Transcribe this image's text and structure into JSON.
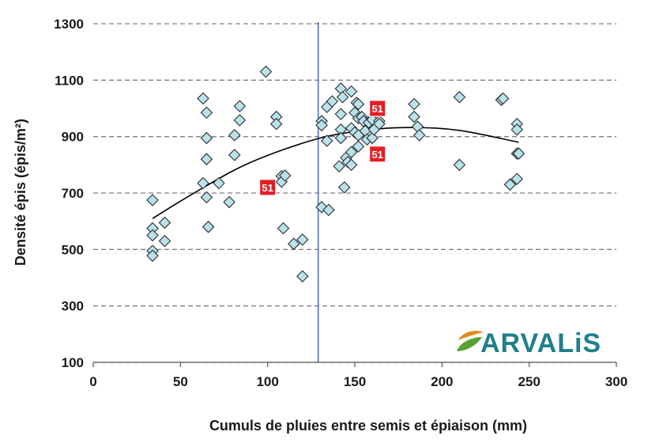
{
  "chart_data": {
    "type": "scatter",
    "xlabel": "Cumuls de pluies entre semis et épiaison (mm)",
    "ylabel": "Densité épis (épis/m²)",
    "xlim": [
      0,
      300
    ],
    "ylim": [
      100,
      1300
    ],
    "xticks": [
      0,
      50,
      100,
      150,
      200,
      250,
      300
    ],
    "yticks": [
      100,
      300,
      500,
      700,
      900,
      1100,
      1300
    ],
    "grid": "horizontal dashed",
    "vertical_reference_line_x": 129,
    "points": [
      [
        34,
        675
      ],
      [
        34,
        575
      ],
      [
        34,
        550
      ],
      [
        34,
        495
      ],
      [
        34,
        478
      ],
      [
        41,
        595
      ],
      [
        41,
        530
      ],
      [
        63,
        1035
      ],
      [
        63,
        735
      ],
      [
        65,
        985
      ],
      [
        65,
        895
      ],
      [
        65,
        820
      ],
      [
        65,
        685
      ],
      [
        66,
        580
      ],
      [
        72,
        735
      ],
      [
        78,
        668
      ],
      [
        81,
        905
      ],
      [
        81,
        835
      ],
      [
        84,
        1008
      ],
      [
        84,
        958
      ],
      [
        99,
        1130
      ],
      [
        105,
        970
      ],
      [
        105,
        945
      ],
      [
        108,
        760
      ],
      [
        108,
        740
      ],
      [
        109,
        575
      ],
      [
        110,
        762
      ],
      [
        115,
        520
      ],
      [
        120,
        535
      ],
      [
        120,
        405
      ],
      [
        131,
        955
      ],
      [
        131,
        940
      ],
      [
        131,
        650
      ],
      [
        134,
        1005
      ],
      [
        134,
        885
      ],
      [
        135,
        640
      ],
      [
        137,
        1025
      ],
      [
        141,
        795
      ],
      [
        142,
        1070
      ],
      [
        142,
        980
      ],
      [
        142,
        925
      ],
      [
        142,
        895
      ],
      [
        143,
        1040
      ],
      [
        144,
        720
      ],
      [
        145,
        825
      ],
      [
        146,
        810
      ],
      [
        148,
        1060
      ],
      [
        148,
        930
      ],
      [
        148,
        845
      ],
      [
        148,
        800
      ],
      [
        150,
        985
      ],
      [
        150,
        915
      ],
      [
        151,
        1020
      ],
      [
        152,
        1015
      ],
      [
        152,
        965
      ],
      [
        152,
        905
      ],
      [
        152,
        865
      ],
      [
        154,
        970
      ],
      [
        155,
        955
      ],
      [
        156,
        920
      ],
      [
        157,
        890
      ],
      [
        158,
        950
      ],
      [
        160,
        960
      ],
      [
        160,
        895
      ],
      [
        161,
        925
      ],
      [
        164,
        955
      ],
      [
        164,
        945
      ],
      [
        184,
        1015
      ],
      [
        184,
        970
      ],
      [
        186,
        935
      ],
      [
        187,
        905
      ],
      [
        210,
        1040
      ],
      [
        210,
        800
      ],
      [
        234,
        1030
      ],
      [
        235,
        1035
      ],
      [
        239,
        730
      ],
      [
        243,
        945
      ],
      [
        243,
        925
      ],
      [
        243,
        840
      ],
      [
        243,
        750
      ],
      [
        244,
        840
      ]
    ],
    "highlighted_points": [
      {
        "x": 100,
        "y": 720,
        "label": "51"
      },
      {
        "x": 163,
        "y": 1000,
        "label": "51"
      },
      {
        "x": 163,
        "y": 838,
        "label": "51"
      }
    ],
    "trendline": {
      "type": "polynomial-2",
      "points": [
        [
          34,
          610
        ],
        [
          60,
          708
        ],
        [
          90,
          808
        ],
        [
          129,
          893
        ],
        [
          160,
          925
        ],
        [
          184,
          932
        ],
        [
          210,
          922
        ],
        [
          244,
          880
        ]
      ]
    },
    "colors": {
      "marker_fill": "#b8e2ec",
      "marker_stroke": "#2d2d2d",
      "grid": "#7f7f7f",
      "reference_line": "#4a75b5",
      "trendline": "#000000",
      "badge_fill": "#e31e24",
      "logo_text": "#1f7f8c",
      "logo_leaf_orange": "#e58a1f",
      "logo_leaf_green": "#5aa032"
    }
  },
  "logo": {
    "text": "ARVALiS",
    "icon": "leaf-logo-icon"
  }
}
